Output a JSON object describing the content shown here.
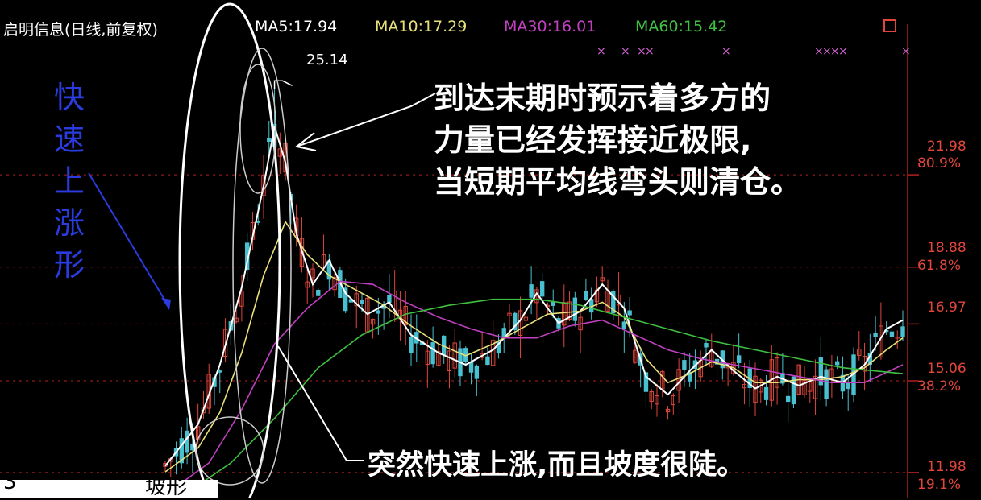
{
  "header": {
    "title": "启明信息(日线,前复权)",
    "ma5": "MA5:17.94",
    "ma10": "MA10:17.29",
    "ma30": "MA30:16.01",
    "ma60": "MA60:15.42"
  },
  "colors": {
    "background": "#000000",
    "up_candle": "#e0463c",
    "down_candle": "#49c0cf",
    "ma5": "#ffffff",
    "ma10": "#e8e07a",
    "ma30": "#c040c0",
    "ma60": "#40c040",
    "grid": "#b02020",
    "vertical_text": "#2a3cdf"
  },
  "peak_label": "25.14",
  "vertical_text": [
    "快",
    "速",
    "上",
    "涨",
    "形"
  ],
  "annotation_top": [
    "到达末期时预示着多方的",
    "力量已经发挥接近极限,",
    "当短期平均线弯头则清仓。"
  ],
  "annotation_bottom": "突然快速上涨,而且坡度很陡。",
  "bottom_caption": "3",
  "bottom_caption_tail": "坡形",
  "chart_data": {
    "type": "candlestick",
    "title": "启明信息(日线,前复权)",
    "peak_high": 25.14,
    "ylim": [
      11.3,
      26.5
    ],
    "grid": true,
    "right_axis_levels": [
      {
        "price": "21.98",
        "pct": "80.9%",
        "value": 21.98
      },
      {
        "price": "18.88",
        "pct": "61.8%",
        "value": 18.88
      },
      {
        "price": "16.97",
        "pct": "",
        "value": 16.97
      },
      {
        "price": "15.06",
        "pct": "38.2%",
        "value": 15.06
      },
      {
        "price": "11.98",
        "pct": "19.1%",
        "value": 11.98
      }
    ],
    "ma_lines": {
      "ma5": [
        [
          0,
          12.2
        ],
        [
          6,
          13.6
        ],
        [
          10,
          15.6
        ],
        [
          14,
          18.2
        ],
        [
          18,
          21.6
        ],
        [
          20,
          23.6
        ],
        [
          22,
          22.4
        ],
        [
          24,
          20.0
        ],
        [
          27,
          18.3
        ],
        [
          30,
          19.1
        ],
        [
          33,
          18.0
        ],
        [
          37,
          17.3
        ],
        [
          41,
          17.7
        ],
        [
          45,
          16.6
        ],
        [
          50,
          16.0
        ],
        [
          55,
          15.6
        ],
        [
          60,
          16.1
        ],
        [
          65,
          17.1
        ],
        [
          68,
          18.0
        ],
        [
          72,
          17.0
        ],
        [
          76,
          17.4
        ],
        [
          80,
          18.3
        ],
        [
          84,
          17.5
        ],
        [
          88,
          15.2
        ],
        [
          92,
          14.6
        ],
        [
          96,
          15.4
        ],
        [
          100,
          16.1
        ],
        [
          104,
          15.4
        ],
        [
          108,
          14.8
        ],
        [
          112,
          15.2
        ],
        [
          116,
          14.9
        ],
        [
          120,
          15.2
        ],
        [
          124,
          15.0
        ],
        [
          128,
          15.6
        ],
        [
          132,
          16.8
        ],
        [
          135,
          17.1
        ]
      ],
      "ma10": [
        [
          0,
          12.0
        ],
        [
          6,
          12.8
        ],
        [
          10,
          14.0
        ],
        [
          14,
          16.0
        ],
        [
          18,
          18.6
        ],
        [
          22,
          20.4
        ],
        [
          26,
          19.3
        ],
        [
          30,
          18.6
        ],
        [
          35,
          18.1
        ],
        [
          40,
          17.6
        ],
        [
          45,
          16.9
        ],
        [
          50,
          16.3
        ],
        [
          55,
          15.9
        ],
        [
          60,
          16.3
        ],
        [
          65,
          16.8
        ],
        [
          70,
          17.3
        ],
        [
          76,
          17.4
        ],
        [
          80,
          17.7
        ],
        [
          84,
          17.2
        ],
        [
          88,
          15.8
        ],
        [
          92,
          15.0
        ],
        [
          96,
          15.3
        ],
        [
          100,
          15.7
        ],
        [
          104,
          15.5
        ],
        [
          108,
          15.0
        ],
        [
          112,
          15.0
        ],
        [
          116,
          15.1
        ],
        [
          120,
          15.1
        ],
        [
          124,
          15.2
        ],
        [
          128,
          15.5
        ],
        [
          132,
          16.1
        ],
        [
          135,
          16.5
        ]
      ],
      "ma30": [
        [
          2,
          11.5
        ],
        [
          8,
          12.3
        ],
        [
          14,
          14.1
        ],
        [
          20,
          16.3
        ],
        [
          26,
          17.5
        ],
        [
          32,
          18.4
        ],
        [
          38,
          18.3
        ],
        [
          44,
          17.7
        ],
        [
          50,
          17.2
        ],
        [
          56,
          16.8
        ],
        [
          62,
          16.5
        ],
        [
          68,
          16.5
        ],
        [
          74,
          16.9
        ],
        [
          80,
          17.1
        ],
        [
          86,
          16.6
        ],
        [
          92,
          16.1
        ],
        [
          98,
          15.8
        ],
        [
          104,
          15.6
        ],
        [
          110,
          15.4
        ],
        [
          116,
          15.2
        ],
        [
          122,
          15.0
        ],
        [
          128,
          15.0
        ],
        [
          135,
          15.6
        ]
      ],
      "ma60": [
        [
          4,
          11.3
        ],
        [
          12,
          12.3
        ],
        [
          20,
          13.8
        ],
        [
          28,
          15.5
        ],
        [
          36,
          16.6
        ],
        [
          44,
          17.3
        ],
        [
          52,
          17.6
        ],
        [
          60,
          17.8
        ],
        [
          68,
          17.8
        ],
        [
          76,
          17.6
        ],
        [
          84,
          17.2
        ],
        [
          92,
          16.8
        ],
        [
          100,
          16.4
        ],
        [
          108,
          16.1
        ],
        [
          116,
          15.8
        ],
        [
          124,
          15.5
        ],
        [
          135,
          15.3
        ]
      ]
    }
  }
}
